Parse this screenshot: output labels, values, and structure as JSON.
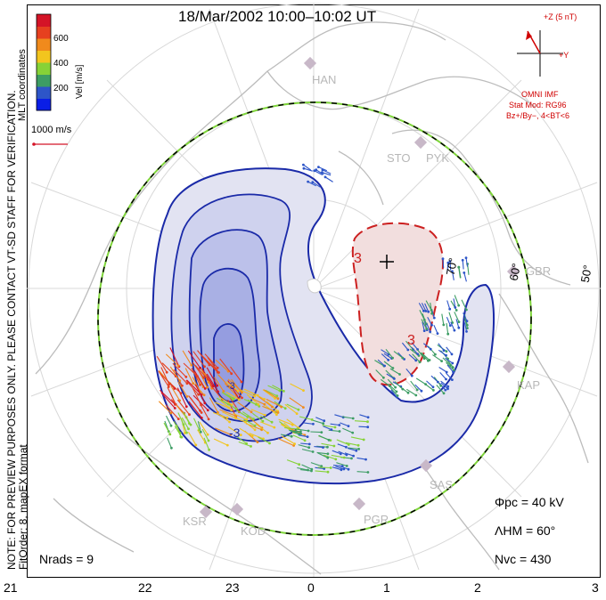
{
  "header": {
    "title": "18/Mar/2002 10:00–10:02 UT"
  },
  "side_notes": {
    "preview_note": "NOTE: FOR PREVIEW PURPOSES ONLY. PLEASE CONTACT VT-SD STAFF FOR VERIFICATION.",
    "fit_order": "FitOrder: 8, mapEX format",
    "coords": "MLT coordinates"
  },
  "legend": {
    "vel_label": "Vel [m/s]",
    "ticks": [
      "600",
      "400",
      "200"
    ],
    "colors": [
      "#0a1ee6",
      "#2d55c8",
      "#3d9d64",
      "#86d237",
      "#f2c51e",
      "#f08a1c",
      "#e6401f",
      "#d41427"
    ],
    "ref_vector_label": "1000 m/s"
  },
  "imf": {
    "z_label": "+Z (5 nT)",
    "y_label": "+Y",
    "source": "OMNI IMF",
    "stat_mod": "Stat Mod: RG96",
    "condition": "Bz+/By−, 4<BT<6"
  },
  "stats": {
    "phi_pc": "Φpc = 40 kV",
    "lambda_hm": "ΛHM = 60°",
    "n_vc": "Nvc = 430",
    "n_rads": "Nrads = 9"
  },
  "mlt_ticks": [
    "21",
    "22",
    "23",
    "0",
    "1",
    "2",
    "3"
  ],
  "lat_labels": [
    "70°",
    "60°",
    "50°"
  ],
  "sites": [
    "HAN",
    "STO",
    "PYK",
    "GBR",
    "KAP",
    "SAS",
    "PGR",
    "KOD",
    "KSR"
  ],
  "contours": {
    "labels": [
      "3",
      "3",
      "-3",
      "-3"
    ]
  },
  "colors": {
    "positive_cell": "#f2dede",
    "negative_cell": "#c0c4ee",
    "hmb": "#7fd63a",
    "contour_neg": "#1a2aa8",
    "contour_pos": "#cc2020"
  }
}
